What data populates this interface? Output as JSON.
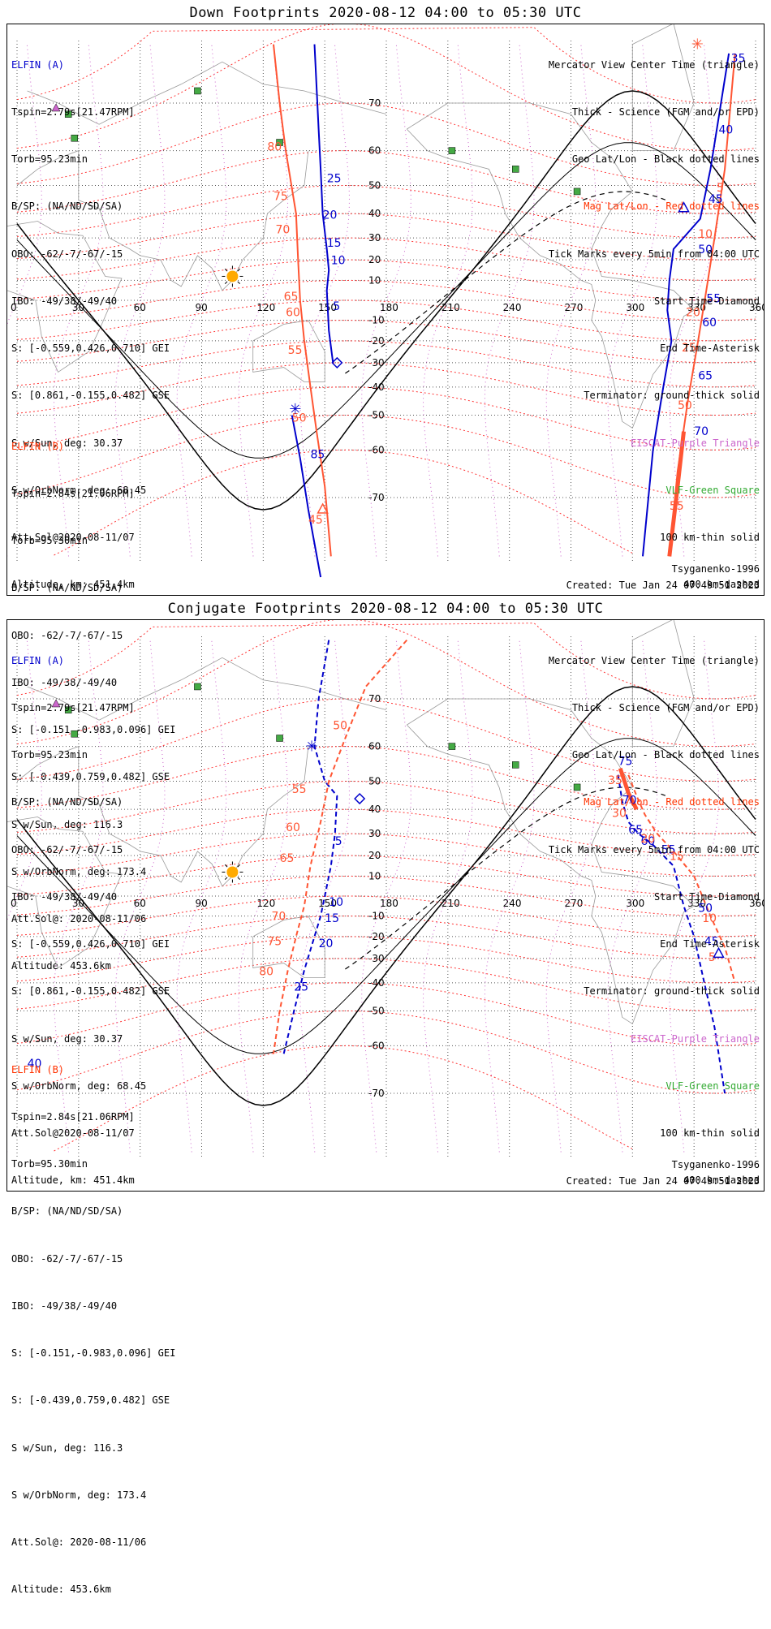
{
  "panels": [
    {
      "title": "Down Footprints 2020-08-12 04:00 to 05:30 UTC",
      "mode": "down"
    },
    {
      "title": "Conjugate Footprints 2020-08-12 04:00 to 05:30 UTC",
      "mode": "conjugate"
    }
  ],
  "elfin_a": {
    "name": "ELFIN (A)",
    "lines": [
      "Tspin=2.79s[21.47RPM]",
      "Torb=95.23min",
      "B/SP: (NA/ND/SD/SA)",
      "OBO: -62/-7/-67/-15",
      "IBO: -49/38/-49/40",
      "S: [-0.559,0.426,0.710] GEI",
      "S: [0.861,-0.155,0.482] GSE",
      "S w/Sun, deg: 30.37",
      "S w/OrbNorm, deg: 68.45",
      "Att.Sol@2020-08-11/07",
      "Altitude, km: 451.4km"
    ]
  },
  "elfin_b": {
    "name": "ELFIN (B)",
    "lines": [
      "Tspin=2.84s[21.06RPM]",
      "Torb=95.30min",
      "B/SP: (NA/ND/SD/SA)",
      "OBO: -62/-7/-67/-15",
      "IBO: -49/38/-49/40",
      "S: [-0.151,-0.983,0.096] GEI",
      "S: [-0.439,0.759,0.482] GSE",
      "S w/Sun, deg: 116.3",
      "S w/OrbNorm, deg: 173.4",
      "Att.Sol@: 2020-08-11/06",
      "Altitude: 453.6km"
    ]
  },
  "legend": {
    "lines": [
      {
        "text": "Mercator View Center Time (triangle)",
        "color": "#000000"
      },
      {
        "text": "Thick - Science (FGM and/or EPD)",
        "color": "#000000"
      },
      {
        "text": "Geo Lat/Lon - Black dotted lines",
        "color": "#000000"
      },
      {
        "text": "Mag Lat/Lon - Red dotted lines",
        "color": "#ff3300"
      },
      {
        "text": "Tick Marks every 5min from 04:00 UTC",
        "color": "#000000"
      },
      {
        "text": "Start Time-Diamond",
        "color": "#000000"
      },
      {
        "text": "End Time-Asterisk",
        "color": "#000000"
      },
      {
        "text": "Terminator: ground-thick solid",
        "color": "#000000"
      },
      {
        "text": "EISCAT-Purple Triangle",
        "color": "#cc66cc"
      },
      {
        "text": "VLF-Green Square",
        "color": "#33aa33"
      },
      {
        "text": "100 km-thin solid",
        "color": "#000000"
      },
      {
        "text": "400 km-dashed",
        "color": "#000000"
      }
    ]
  },
  "model": "Tsyganenko-1996",
  "created": "Created: Tue Jan 24 07:49:51 2023",
  "map": {
    "lon_ticks": [
      "0",
      "30",
      "60",
      "90",
      "120",
      "150",
      "180",
      "210",
      "240",
      "270",
      "300",
      "330",
      "360"
    ],
    "lat_ticks": [
      "70",
      "60",
      "50",
      "40",
      "30",
      "20",
      "10",
      "-10",
      "-20",
      "-30",
      "-40",
      "-50",
      "-60",
      "-70"
    ],
    "lat_values": [
      70,
      60,
      50,
      40,
      30,
      20,
      10,
      -10,
      -20,
      -30,
      -40,
      -50,
      -60,
      -70
    ],
    "lon_values": [
      0,
      30,
      60,
      90,
      120,
      150,
      180,
      210,
      240,
      270,
      300,
      330,
      360
    ],
    "lat_range": [
      -78,
      80
    ],
    "lon_range": [
      0,
      360
    ]
  },
  "down": {
    "elfin_a_labels": [
      "25",
      "20",
      "15",
      "10",
      "5",
      "35",
      "40",
      "45",
      "50",
      "55",
      "60",
      "65",
      "70"
    ],
    "elfin_b_labels": [
      "80",
      "75",
      "70",
      "65",
      "60",
      "55",
      "50",
      "45",
      "5",
      "10",
      "20",
      "25",
      "50",
      "55"
    ],
    "mag_labels": [
      "85"
    ]
  },
  "conj": {
    "elfin_a_labels": [
      "5",
      "10",
      "15",
      "20",
      "25",
      "75",
      "70",
      "65",
      "60",
      "55",
      "50",
      "45",
      "40"
    ],
    "elfin_b_labels": [
      "50",
      "55",
      "60",
      "65",
      "70",
      "75",
      "80",
      "35",
      "30",
      "20",
      "15",
      "10",
      "5"
    ]
  }
}
